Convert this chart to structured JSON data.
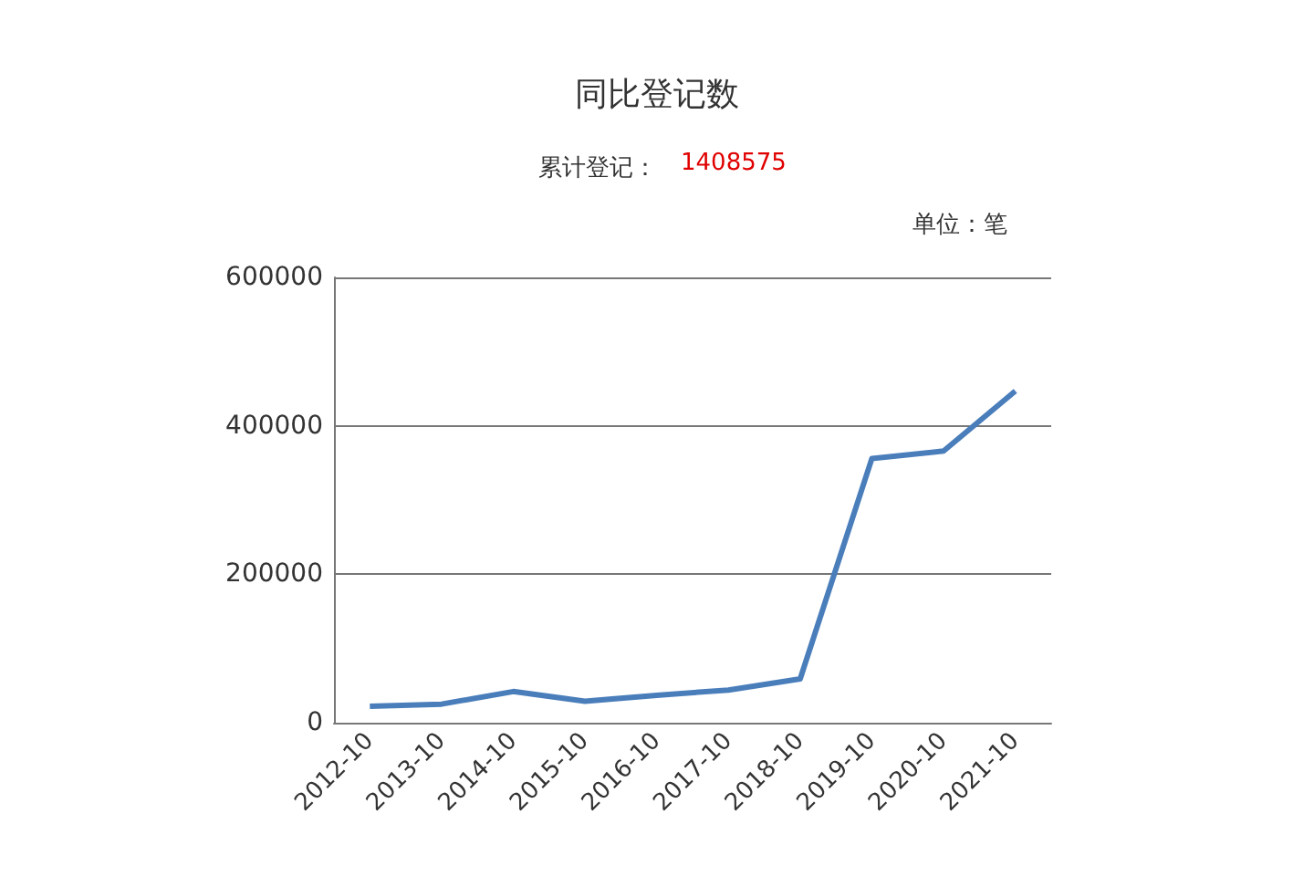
{
  "chart_data": {
    "type": "line",
    "title": "同比登记数",
    "subtitle": "累计登记：",
    "annotations": [
      "1408575",
      "单位：笔"
    ],
    "categories": [
      "2012-10",
      "2013-10",
      "2014-10",
      "2015-10",
      "2016-10",
      "2017-10",
      "2018-10",
      "2019-10",
      "2020-10",
      "2021-10"
    ],
    "series": [
      {
        "color": "#4a7ebb",
        "values": [
          22000,
          25000,
          42000,
          29000,
          37000,
          44000,
          59000,
          356000,
          366000,
          447000
        ]
      }
    ],
    "ylim": [
      0,
      600000
    ],
    "yticks": [
      0,
      200000,
      400000,
      600000
    ],
    "grid": "y",
    "marker": "none",
    "line_style": "solid"
  }
}
